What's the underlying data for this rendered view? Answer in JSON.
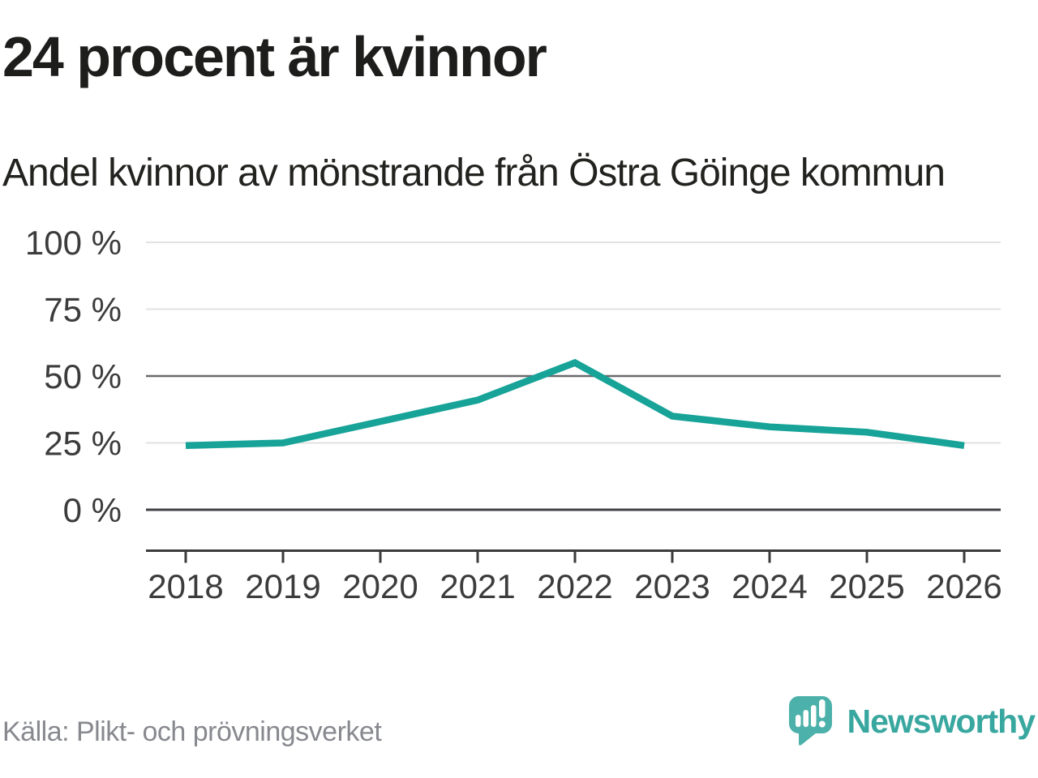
{
  "header": {
    "title": "24 procent är kvinnor",
    "subtitle": "Andel kvinnor av mönstrande från Östra Göinge kommun"
  },
  "chart_data": {
    "type": "line",
    "title": "24 procent är kvinnor",
    "subtitle": "Andel kvinnor av mönstrande från Östra Göinge kommun",
    "categories": [
      "2018",
      "2019",
      "2020",
      "2021",
      "2022",
      "2023",
      "2024",
      "2025",
      "2026"
    ],
    "series": [
      {
        "name": "Andel kvinnor av mönstrande",
        "values": [
          24,
          25,
          33,
          41,
          55,
          35,
          31,
          29,
          24
        ]
      }
    ],
    "unit": "%",
    "ylim": [
      0,
      100
    ],
    "yticks": [
      100,
      75,
      50,
      25,
      0
    ],
    "ytick_labels": [
      "100 %",
      "75 %",
      "50 %",
      "25 %",
      "0 %"
    ],
    "xlabel": "",
    "ylabel": "",
    "grid": "horizontal",
    "emphasized_gridlines": [
      50,
      0
    ],
    "legend_position": "none",
    "line_color": "#17a398"
  },
  "footer": {
    "source": "Källa: Plikt- och prövningsverket",
    "brand": "Newsworthy",
    "brand_color": "#38a79f",
    "logo_bubble_color": "#4cb1aa"
  }
}
